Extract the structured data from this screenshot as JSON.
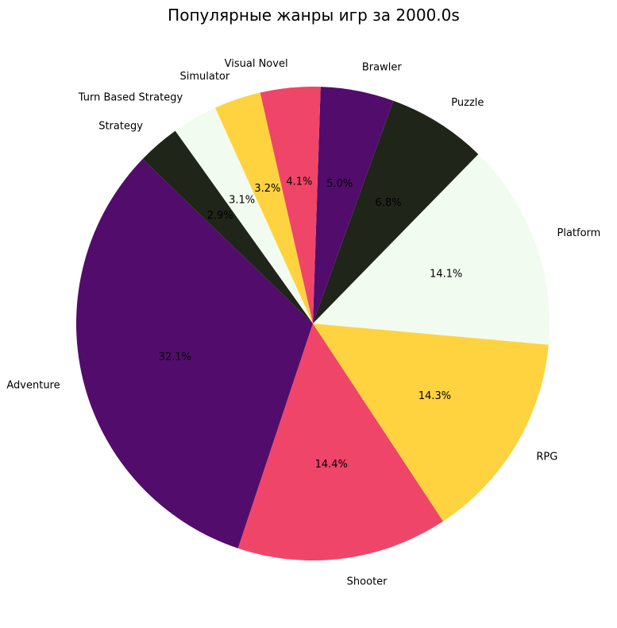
{
  "chart_data": {
    "type": "pie",
    "title": "Популярные жанры игр за 2000.0s",
    "categories": [
      "Adventure",
      "Shooter",
      "RPG",
      "Platform",
      "Puzzle",
      "Brawler",
      "Visual Novel",
      "Simulator",
      "Turn Based Strategy",
      "Strategy"
    ],
    "values": [
      32.1,
      14.4,
      14.3,
      14.1,
      6.8,
      5.0,
      4.1,
      3.2,
      3.1,
      2.9
    ],
    "value_labels": [
      "32.1%",
      "14.4%",
      "14.3%",
      "14.1%",
      "6.8%",
      "5.0%",
      "4.1%",
      "3.2%",
      "3.1%",
      "2.9%"
    ],
    "colors": [
      "#520c6b",
      "#ef4568",
      "#ffd33f",
      "#f2fbf0",
      "#1f2519",
      "#520c6b",
      "#ef4568",
      "#ffd33f",
      "#f2fbf0",
      "#1f2519"
    ],
    "start_angle_deg": 136,
    "direction": "counterclockwise"
  }
}
